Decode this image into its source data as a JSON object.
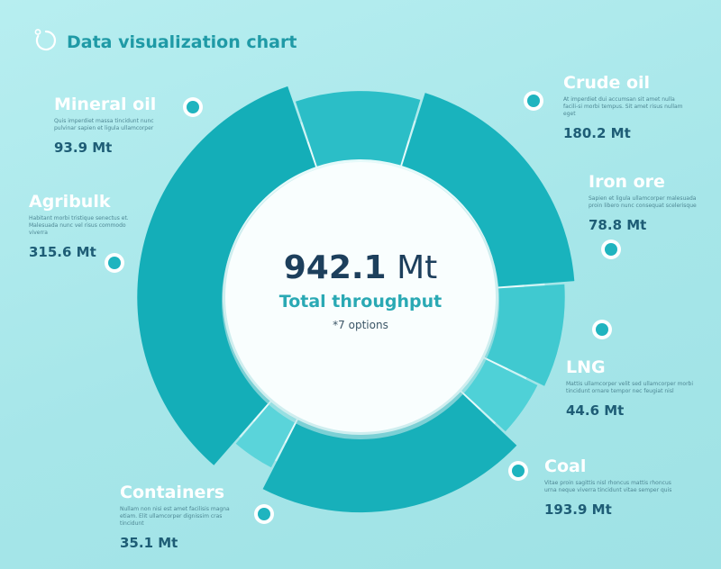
{
  "header": {
    "title": "Data visualization chart",
    "icon": "loading-ring-icon"
  },
  "center": {
    "total_number": "942.1",
    "total_unit": "Mt",
    "total_label": "Total  throughput",
    "note": "*7 options"
  },
  "colors": {
    "accent": "#21b7c2",
    "dark": "#1d3f5c",
    "label": "#ffffff",
    "value": "#1e5d76"
  },
  "chart_data": {
    "type": "pie",
    "title": "",
    "unit": "Mt",
    "total": 942.1,
    "slices": [
      {
        "name": "Crude oil",
        "value": 180.2,
        "value_label": "180.2 Mt",
        "description": "At imperdiet dui accumsan sit amet nulla facili-si morbi tempus. Sit amet risus nullam eget",
        "color": "#19b3bd"
      },
      {
        "name": "Iron ore",
        "value": 78.8,
        "value_label": "78.8 Mt",
        "description": "Sapien et ligula ullamcorper malesuada proin libero nunc consequat scelerisque",
        "color": "#40c9d0"
      },
      {
        "name": "LNG",
        "value": 44.6,
        "value_label": "44.6 Mt",
        "description": "Mattis ullamcorper velit sed ullamcorper morbi tincidunt ornare tempor nec feugiat nisl",
        "color": "#4fd1d7"
      },
      {
        "name": "Coal",
        "value": 193.9,
        "value_label": "193.9 Mt",
        "description": "Vitae proin sagittis nisl rhoncus mattis rhoncus urna neque viverra tincidunt vitae semper quis",
        "color": "#17b0ba"
      },
      {
        "name": "Containers",
        "value": 35.1,
        "value_label": "35.1 Mt",
        "description": "Nullam non nisi est amet facilisis magna etiam. Elit ullamcorper dignissim cras tincidunt",
        "color": "#5ad4da"
      },
      {
        "name": "Agribulk",
        "value": 315.6,
        "value_label": "315.6 Mt",
        "description": "Habitant morbi tristique senectus et. Malesuada nunc vel risus commodo viverra",
        "color": "#14aeb8"
      },
      {
        "name": "Mineral oil",
        "value": 93.9,
        "value_label": "93.9 Mt",
        "description": "Quis imperdiet massa tincidunt nunc pulvinar sapien et ligula ullamcorper",
        "color": "#2bbec7"
      }
    ]
  }
}
